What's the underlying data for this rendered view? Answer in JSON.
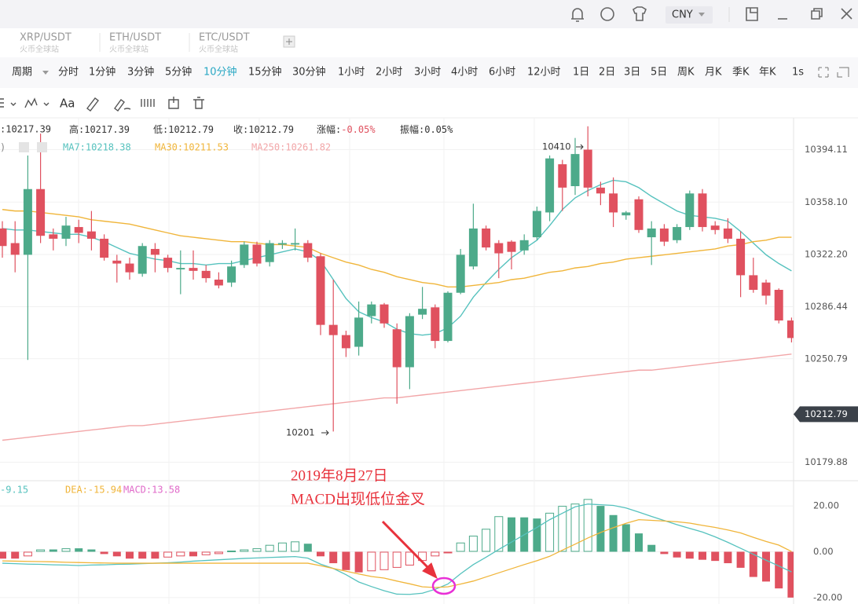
{
  "topbar": {
    "currency": "CNY"
  },
  "tabs": [
    {
      "symbol": "XRP/USDT",
      "exchange": "火币全球站"
    },
    {
      "symbol": "ETH/USDT",
      "exchange": "火币全球站"
    },
    {
      "symbol": "ETC/USDT",
      "exchange": "火币全球站"
    }
  ],
  "periods": [
    "周期",
    "分时",
    "1分钟",
    "3分钟",
    "5分钟",
    "10分钟",
    "15分钟",
    "30分钟",
    "1小时",
    "2小时",
    "3小时",
    "4小时",
    "6小时",
    "12小时",
    "1日",
    "2日",
    "3日",
    "5日",
    "周K",
    "月K",
    "季K",
    "年K",
    "1s"
  ],
  "active_period_index": 5,
  "toolbar": {
    "text_tool": "Aa"
  },
  "chart_data": [
    {
      "type": "candlestick",
      "info_first": ":10217.39",
      "info": [
        {
          "label": "高:",
          "value": "10217.39"
        },
        {
          "label": "低:",
          "value": "10212.79"
        },
        {
          "label": "收:",
          "value": "10212.79"
        },
        {
          "label": "涨幅:",
          "value": "-0.05%"
        },
        {
          "label": "振幅:",
          "value": "0.05%"
        }
      ],
      "legend_cut": ")",
      "up_color": "#4daa8a",
      "down_color": "#e0515f",
      "candles": [
        [
          10340,
          10345,
          10320,
          10328
        ],
        [
          10330,
          10345,
          10310,
          10322
        ],
        [
          10322,
          10390,
          10250,
          10367
        ],
        [
          10367,
          10405,
          10330,
          10335
        ],
        [
          10336,
          10340,
          10325,
          10333
        ],
        [
          10333,
          10348,
          10328,
          10342
        ],
        [
          10341,
          10346,
          10330,
          10337
        ],
        [
          10338,
          10352,
          10325,
          10333
        ],
        [
          10333,
          10336,
          10318,
          10320
        ],
        [
          10318,
          10322,
          10303,
          10316
        ],
        [
          10316,
          10320,
          10305,
          10310
        ],
        [
          10309,
          10330,
          10307,
          10328
        ],
        [
          10326,
          10330,
          10310,
          10322
        ],
        [
          10320,
          10322,
          10310,
          10313
        ],
        [
          10312,
          10325,
          10295,
          10313
        ],
        [
          10313,
          10325,
          10305,
          10311
        ],
        [
          10311,
          10315,
          10303,
          10306
        ],
        [
          10305,
          10310,
          10299,
          10301
        ],
        [
          10303,
          10318,
          10300,
          10314
        ],
        [
          10315,
          10331,
          10313,
          10329
        ],
        [
          10329,
          10331,
          10314,
          10316
        ],
        [
          10317,
          10332,
          10314,
          10330
        ],
        [
          10329,
          10332,
          10326,
          10330
        ],
        [
          10329,
          10340,
          10325,
          10330
        ],
        [
          10330,
          10332,
          10317,
          10320
        ],
        [
          10321,
          10323,
          10267,
          10274
        ],
        [
          10274,
          10305,
          10201,
          10267
        ],
        [
          10267,
          10270,
          10252,
          10258
        ],
        [
          10259,
          10290,
          10253,
          10279
        ],
        [
          10280,
          10290,
          10275,
          10288
        ],
        [
          10288,
          10289,
          10272,
          10275
        ],
        [
          10271,
          10275,
          10220,
          10245
        ],
        [
          10245,
          10282,
          10230,
          10280
        ],
        [
          10281,
          10300,
          10278,
          10285
        ],
        [
          10286,
          10288,
          10258,
          10263
        ],
        [
          10263,
          10297,
          10262,
          10296
        ],
        [
          10296,
          10326,
          10295,
          10322
        ],
        [
          10314,
          10357,
          10312,
          10340
        ],
        [
          10340,
          10342,
          10325,
          10327
        ],
        [
          10330,
          10332,
          10306,
          10323
        ],
        [
          10331,
          10332,
          10312,
          10324
        ],
        [
          10325,
          10336,
          10322,
          10332
        ],
        [
          10334,
          10355,
          10332,
          10352
        ],
        [
          10351,
          10390,
          10345,
          10388
        ],
        [
          10384,
          10387,
          10352,
          10368
        ],
        [
          10369,
          10402,
          10363,
          10391
        ],
        [
          10394,
          10410,
          10362,
          10368
        ],
        [
          10368,
          10372,
          10356,
          10364
        ],
        [
          10364,
          10375,
          10341,
          10351
        ],
        [
          10349,
          10352,
          10346,
          10351
        ],
        [
          10360,
          10362,
          10337,
          10339
        ],
        [
          10334,
          10345,
          10315,
          10340
        ],
        [
          10340,
          10343,
          10328,
          10331
        ],
        [
          10332,
          10343,
          10330,
          10341
        ],
        [
          10341,
          10366,
          10339,
          10364
        ],
        [
          10364,
          10367,
          10338,
          10341
        ],
        [
          10342,
          10345,
          10336,
          10339
        ],
        [
          10340,
          10347,
          10330,
          10333
        ],
        [
          10333,
          10338,
          10293,
          10308
        ],
        [
          10308,
          10320,
          10296,
          10298
        ],
        [
          10303,
          10305,
          10288,
          10294
        ],
        [
          10298,
          10299,
          10275,
          10277
        ],
        [
          10277,
          10279,
          10262,
          10265
        ]
      ],
      "series": [
        {
          "name": "MA7:10218.38",
          "color": "#56c2be",
          "values": [
            10340,
            10339,
            10339,
            10338,
            10337,
            10336,
            10336,
            10334,
            10331,
            10327,
            10323,
            10321,
            10319,
            10318,
            10316,
            10316,
            10315,
            10316,
            10316,
            10318,
            10320,
            10322,
            10324,
            10326,
            10324,
            10318,
            10305,
            10292,
            10283,
            10279,
            10276,
            10271,
            10268,
            10267,
            10268,
            10272,
            10280,
            10293,
            10303,
            10312,
            10320,
            10326,
            10332,
            10342,
            10353,
            10361,
            10366,
            10370,
            10373,
            10372,
            10368,
            10362,
            10357,
            10352,
            10349,
            10348,
            10347,
            10345,
            10338,
            10330,
            10322,
            10316,
            10311
          ]
        },
        {
          "name": "MA30:10211.53",
          "color": "#f0b53a",
          "values": [
            10353,
            10352,
            10352,
            10351,
            10350,
            10349,
            10348,
            10346,
            10345,
            10344,
            10343,
            10341,
            10339,
            10337,
            10335,
            10334,
            10333,
            10332,
            10331,
            10331,
            10330,
            10329,
            10329,
            10328,
            10327,
            10323,
            10320,
            10317,
            10315,
            10312,
            10310,
            10307,
            10305,
            10303,
            10302,
            10300,
            10300,
            10301,
            10302,
            10303,
            10305,
            10306,
            10308,
            10310,
            10311,
            10313,
            10314,
            10316,
            10317,
            10319,
            10320,
            10321,
            10322,
            10323,
            10324,
            10325,
            10326,
            10328,
            10329,
            10331,
            10332,
            10334,
            10334
          ]
        },
        {
          "name": "MA250:10261.82",
          "color": "#f2a6a8",
          "values": [
            10195,
            10196,
            10197,
            10198,
            10199,
            10200,
            10201,
            10202,
            10203,
            10204,
            10205,
            10205,
            10206,
            10207,
            10208,
            10209,
            10210,
            10211,
            10212,
            10213,
            10214,
            10215,
            10216,
            10217,
            10218,
            10219,
            10220,
            10221,
            10222,
            10223,
            10224,
            10224,
            10225,
            10226,
            10227,
            10228,
            10229,
            10230,
            10231,
            10232,
            10233,
            10234,
            10235,
            10236,
            10237,
            10238,
            10239,
            10240,
            10241,
            10242,
            10243,
            10243,
            10244,
            10245,
            10246,
            10247,
            10248,
            10249,
            10250,
            10251,
            10252,
            10253,
            10254
          ]
        }
      ],
      "ylim": [
        10167.3,
        10415.8
      ],
      "yticks": [
        10394.11,
        {
          "value": 10358.1,
          "label": "10358.10"
        },
        {
          "value": 10322.2,
          "label": "10322.20"
        },
        10286.44,
        10250.79,
        10179.88
      ],
      "last_price": 10212.79,
      "max_label": 10410,
      "min_label": 10201
    },
    {
      "type": "macd",
      "up_color": "#4daa8a",
      "down_color": "#e0515f",
      "series": [
        {
          "name": "-9.15",
          "color": "#56c2be",
          "values": [
            -5,
            -5.2,
            -5.4,
            -5.5,
            -5.7,
            -5.8,
            -6,
            -5.8,
            -5.7,
            -5.5,
            -5.4,
            -5.2,
            -5,
            -4.8,
            -4.5,
            -4.1,
            -3.8,
            -3.5,
            -3.2,
            -2.9,
            -2.7,
            -2.5,
            -2.3,
            -2.1,
            -2.8,
            -5.4,
            -7.3,
            -10,
            -13.2,
            -15.2,
            -17,
            -18.5,
            -18.6,
            -18.1,
            -16.4,
            -14.1,
            -9.6,
            -5.6,
            -2.4,
            1,
            4.2,
            7.4,
            10.6,
            14,
            16.8,
            19.6,
            20.8,
            20.5,
            20.2,
            19.1,
            17.3,
            15.4,
            13.6,
            11.8,
            10.2,
            8.6,
            6.5,
            4.1,
            1.5,
            -1.1,
            -3.7,
            -6.2,
            -8.8
          ]
        },
        {
          "name": "DEA:-15.94",
          "color": "#f0b53a",
          "values": [
            -4,
            -4.1,
            -4.2,
            -4.3,
            -4.4,
            -4.6,
            -4.7,
            -4.8,
            -4.9,
            -5,
            -5,
            -5,
            -5,
            -5,
            -5,
            -5,
            -5,
            -5,
            -5,
            -5,
            -5,
            -5,
            -5,
            -5,
            -5,
            -6.1,
            -7.3,
            -8.5,
            -9.7,
            -10.8,
            -11.5,
            -12.8,
            -14,
            -15.3,
            -15.6,
            -15.3,
            -14.1,
            -12.8,
            -11,
            -9.2,
            -7.4,
            -5.6,
            -3.9,
            -2,
            0.7,
            3.3,
            6,
            8.4,
            10.5,
            12.4,
            14,
            13.7,
            13.4,
            13.1,
            12.5,
            11.5,
            10.6,
            9.5,
            8.2,
            6.3,
            4.5,
            2.9,
            0.1
          ]
        }
      ],
      "histogram": {
        "name": "MACD:13.58",
        "color": "#e06ac9",
        "values": [
          -3,
          -3,
          -2,
          1,
          1,
          1.5,
          1.5,
          1,
          -1,
          -2,
          -3,
          -3,
          -3,
          -2.5,
          -2,
          -2,
          -1.5,
          -1,
          0.5,
          1,
          1.5,
          3,
          4,
          4.5,
          3.5,
          -2,
          -5,
          -8,
          -9,
          -8.5,
          -8,
          -7,
          -6,
          -4,
          -2,
          -0.5,
          4,
          7,
          10,
          15.5,
          15,
          15,
          14.5,
          17,
          20,
          21,
          23,
          20,
          16,
          12,
          8,
          3,
          -1,
          -2.5,
          -3,
          -3.5,
          -4,
          -5,
          -7,
          -11,
          -13,
          -16,
          -20
        ]
      },
      "ylim": [
        -22.8,
        31
      ],
      "yticks": [
        {
          "value": 20,
          "label": "20.00"
        },
        {
          "value": 0,
          "label": "0.00"
        },
        {
          "value": -20,
          "label": "-20.00"
        }
      ],
      "annotation": [
        "2019年8月27日",
        "MACD出现低位金叉"
      ],
      "annotation_color": "#e8323c"
    }
  ]
}
